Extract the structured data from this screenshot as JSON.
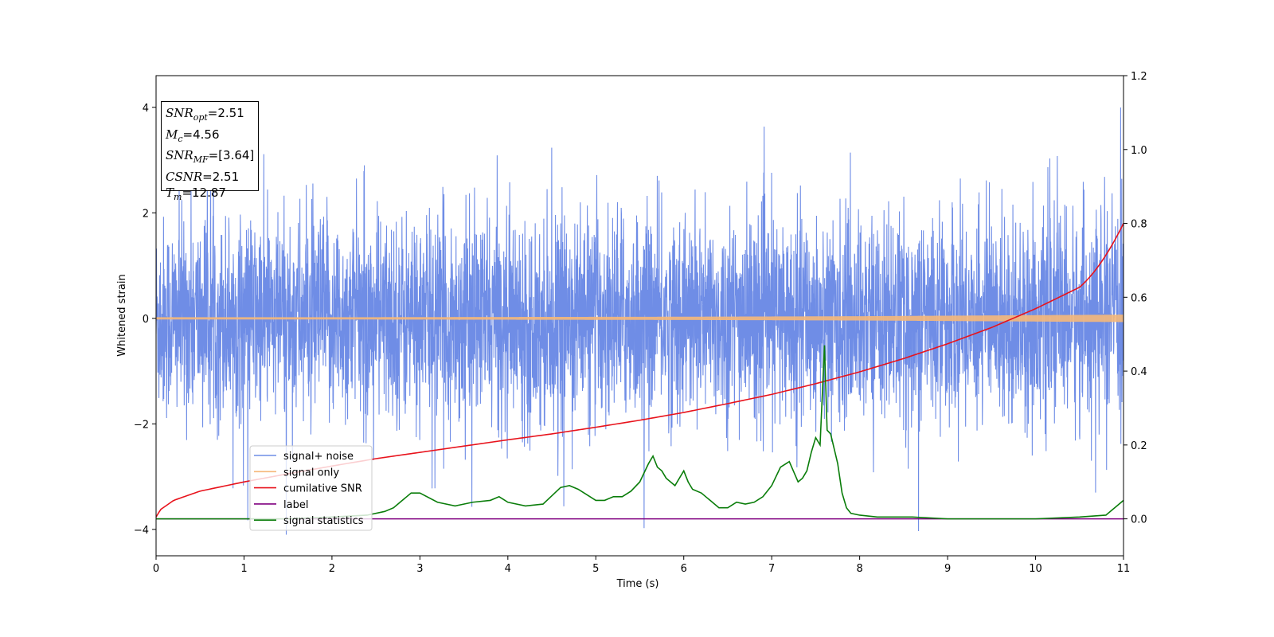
{
  "chart_data": {
    "type": "line",
    "xlabel": "Time (s)",
    "ylabel": "Whitened strain",
    "xlim": [
      0,
      11
    ],
    "ylim_left": [
      -4.5,
      4.6
    ],
    "ylim_right": [
      -0.1,
      1.2
    ],
    "x_ticks": [
      "0",
      "1",
      "2",
      "3",
      "4",
      "5",
      "6",
      "7",
      "8",
      "9",
      "10",
      "11"
    ],
    "y_left_ticks": [
      "4",
      "2",
      "0",
      "−2",
      "−4"
    ],
    "y_left_tick_values": [
      4,
      2,
      0,
      -2,
      -4
    ],
    "y_right_ticks": [
      "1.2",
      "1.0",
      "0.8",
      "0.6",
      "0.4",
      "0.2",
      "0.0"
    ],
    "y_right_tick_values": [
      1.2,
      1.0,
      0.8,
      0.6,
      0.4,
      0.2,
      0.0
    ],
    "legend_position": "lower-left",
    "annotation": [
      {
        "base": "SNR",
        "sub": "opt",
        "value": "=2.51"
      },
      {
        "base": "M",
        "sub": "c",
        "value": "=4.56"
      },
      {
        "base": "SNR",
        "sub": "MF",
        "value": "=[3.64]"
      },
      {
        "base": "CSNR",
        "sub": "",
        "value": "=2.51"
      },
      {
        "base": "T",
        "sub": "m",
        "value": "=12.87"
      }
    ],
    "series": [
      {
        "name": "signal+ noise",
        "color": "#6f8de6",
        "axis": "left",
        "description_stats": {
          "min": -4.1,
          "max": 4.15
        }
      },
      {
        "name": "signal only",
        "color": "#f5b87a",
        "axis": "left",
        "x": [
          0,
          2,
          4,
          6,
          8,
          9,
          10,
          11
        ],
        "amplitude": [
          0.02,
          0.02,
          0.025,
          0.03,
          0.04,
          0.05,
          0.06,
          0.07
        ]
      },
      {
        "name": "cumilative SNR",
        "color": "#e8131c",
        "axis": "right",
        "x": [
          0,
          0.05,
          0.2,
          0.5,
          1,
          1.5,
          2,
          2.5,
          3,
          3.5,
          4,
          4.5,
          5,
          5.5,
          6,
          6.5,
          7,
          7.5,
          8,
          8.5,
          9,
          9.5,
          10,
          10.5,
          11
        ],
        "y": [
          0.005,
          0.025,
          0.05,
          0.075,
          0.1,
          0.122,
          0.143,
          0.163,
          0.18,
          0.197,
          0.214,
          0.23,
          0.248,
          0.267,
          0.288,
          0.312,
          0.337,
          0.366,
          0.398,
          0.434,
          0.474,
          0.518,
          0.569,
          0.627,
          0.8
        ]
      },
      {
        "name": "label",
        "color": "#800080",
        "axis": "right",
        "x": [
          0,
          11
        ],
        "y": [
          0,
          0
        ]
      },
      {
        "name": "signal statistics",
        "color": "#0a7d0a",
        "axis": "right",
        "x": [
          0,
          0.5,
          1,
          1.5,
          2,
          2.4,
          2.6,
          2.7,
          2.8,
          2.9,
          3.0,
          3.2,
          3.4,
          3.6,
          3.8,
          3.9,
          4.0,
          4.2,
          4.4,
          4.6,
          4.7,
          4.8,
          4.9,
          5.0,
          5.1,
          5.2,
          5.3,
          5.4,
          5.5,
          5.6,
          5.65,
          5.7,
          5.75,
          5.8,
          5.9,
          6.0,
          6.05,
          6.1,
          6.2,
          6.3,
          6.4,
          6.5,
          6.6,
          6.7,
          6.8,
          6.9,
          7.0,
          7.1,
          7.2,
          7.3,
          7.35,
          7.4,
          7.45,
          7.5,
          7.55,
          7.6,
          7.63,
          7.67,
          7.7,
          7.75,
          7.8,
          7.85,
          7.9,
          8.0,
          8.2,
          8.6,
          9.0,
          9.5,
          10.0,
          10.5,
          10.8,
          11.0
        ],
        "y": [
          0.0,
          0.0,
          0.0,
          0.0,
          0.005,
          0.01,
          0.02,
          0.03,
          0.05,
          0.07,
          0.07,
          0.045,
          0.035,
          0.045,
          0.05,
          0.06,
          0.045,
          0.035,
          0.04,
          0.085,
          0.09,
          0.08,
          0.065,
          0.05,
          0.05,
          0.06,
          0.06,
          0.075,
          0.1,
          0.15,
          0.17,
          0.14,
          0.13,
          0.11,
          0.09,
          0.13,
          0.1,
          0.08,
          0.07,
          0.05,
          0.03,
          0.03,
          0.045,
          0.04,
          0.045,
          0.06,
          0.09,
          0.14,
          0.155,
          0.1,
          0.11,
          0.13,
          0.18,
          0.22,
          0.2,
          0.47,
          0.24,
          0.23,
          0.2,
          0.15,
          0.07,
          0.03,
          0.015,
          0.01,
          0.005,
          0.005,
          0.0,
          0.0,
          0.0,
          0.005,
          0.01,
          0.05
        ]
      }
    ]
  }
}
